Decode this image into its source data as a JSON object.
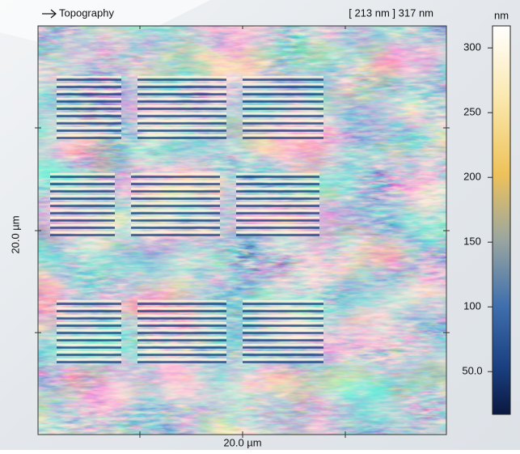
{
  "header": {
    "title": "Topography",
    "range": "[ 213 nm ] 317 nm"
  },
  "colorbar": {
    "unit": "nm",
    "lim": [
      17,
      317
    ],
    "ticks": [
      {
        "value": 50,
        "label": "50.0"
      },
      100,
      150,
      200,
      250,
      300
    ]
  },
  "axes": {
    "x_label": "20.0 µm",
    "y_label": "20.0 µm"
  }
}
